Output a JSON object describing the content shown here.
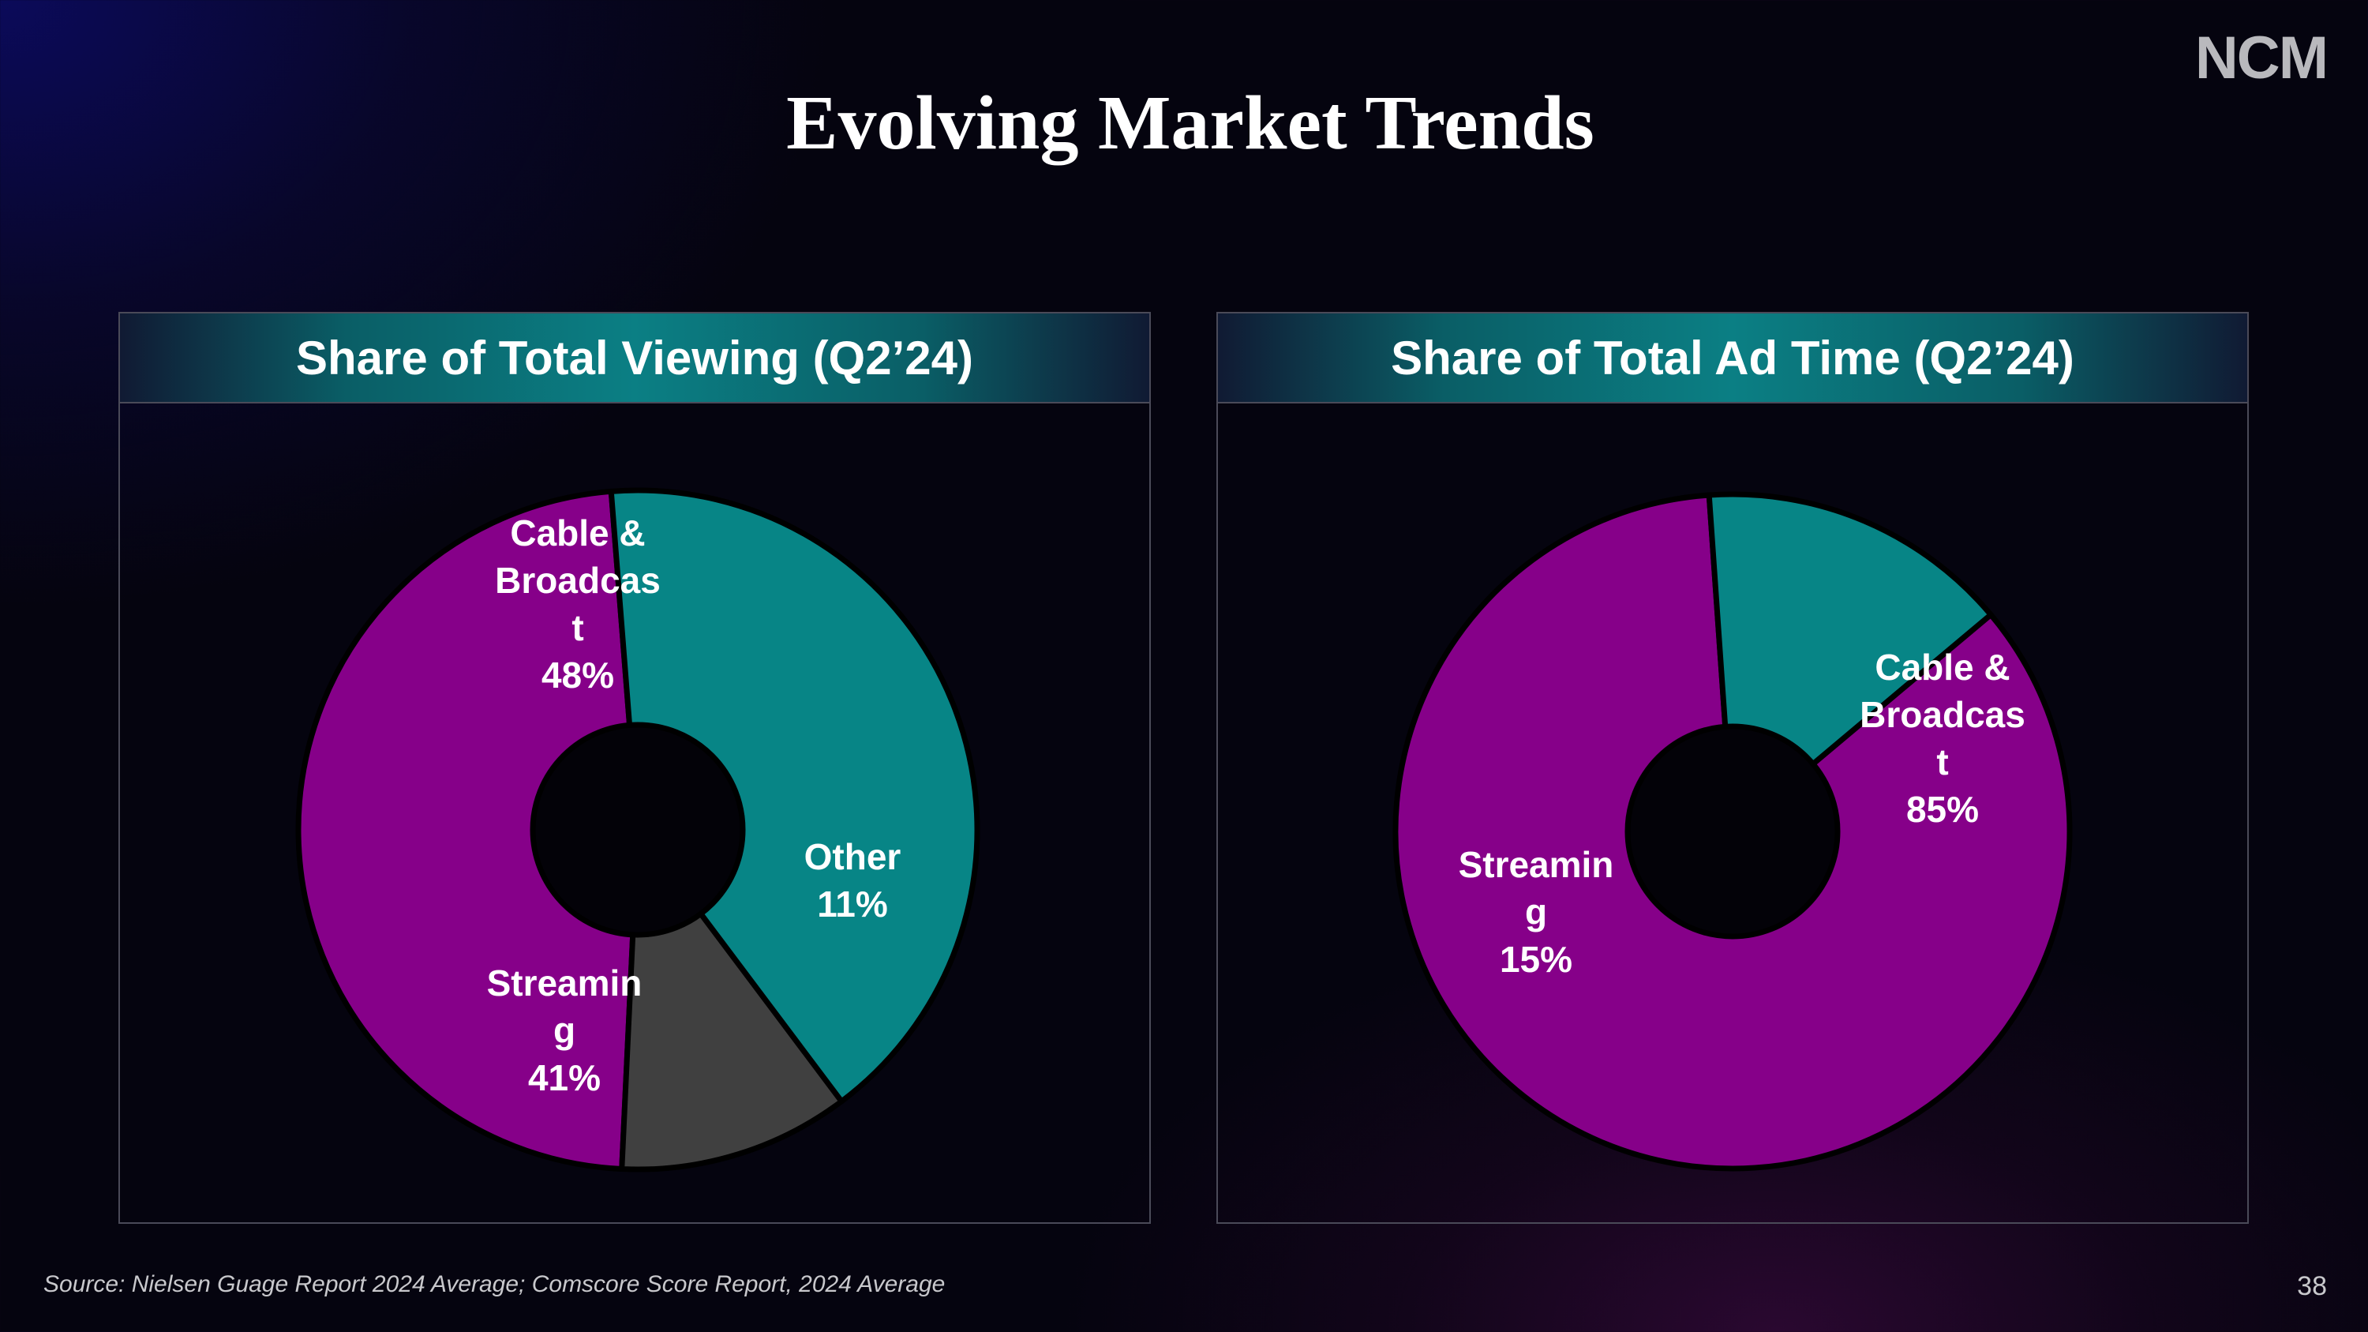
{
  "logo": "NCM",
  "title": "Evolving Market Trends",
  "source": "Source: Nielsen Guage Report 2024 Average; Comscore Score Report, 2024 Average",
  "page_number": "38",
  "colors": {
    "cable": "#860089",
    "streaming": "#078586",
    "other": "#404040",
    "hole": "#05040f",
    "stroke": "#000000"
  },
  "chart_data": [
    {
      "type": "pie",
      "title": "Share of Total Viewing (Q2’24)",
      "slices": [
        {
          "name": "Cable & Broadcast",
          "label_lines": [
            "Cable &",
            "Broadcas",
            "t",
            "48%"
          ],
          "value": 48,
          "color": "#860089"
        },
        {
          "name": "Other",
          "label_lines": [
            "Other",
            "11%"
          ],
          "value": 11,
          "color": "#404040"
        },
        {
          "name": "Streaming",
          "label_lines": [
            "Streamin",
            "g",
            "41%"
          ],
          "value": 41,
          "color": "#078586"
        }
      ]
    },
    {
      "type": "pie",
      "title": "Share of Total Ad Time (Q2’24)",
      "slices": [
        {
          "name": "Cable & Broadcast",
          "label_lines": [
            "Cable &",
            "Broadcas",
            "t",
            "85%"
          ],
          "value": 85,
          "color": "#860089"
        },
        {
          "name": "Streaming",
          "label_lines": [
            "Streamin",
            "g",
            "15%"
          ],
          "value": 15,
          "color": "#078586"
        }
      ]
    }
  ]
}
